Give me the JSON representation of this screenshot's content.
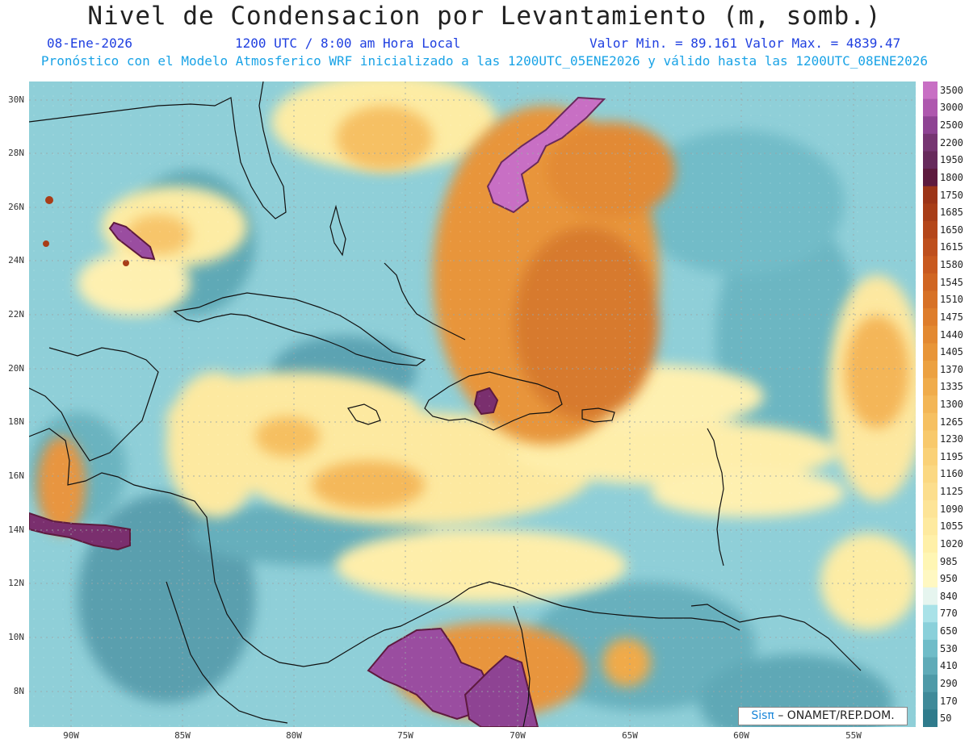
{
  "header": {
    "title": "Nivel de Condensacion por Levantamiento (m, somb.)",
    "date": "08-Ene-2026",
    "time": "1200 UTC / 8:00 am Hora Local",
    "minmax": "Valor Min. = 89.161  Valor Max. = 4839.47",
    "model_line": "Pronóstico con el Modelo Atmosferico WRF inicializado a las 1200UTC_05ENE2026 y válido hasta las  1200UTC_08ENE2026"
  },
  "axes": {
    "lat_labels": [
      "30N",
      "28N",
      "26N",
      "24N",
      "22N",
      "20N",
      "18N",
      "16N",
      "14N",
      "12N",
      "10N",
      "8N"
    ],
    "lon_labels": [
      "90W",
      "85W",
      "80W",
      "75W",
      "70W",
      "65W",
      "60W",
      "55W"
    ]
  },
  "colorbar": {
    "labels": [
      "3500",
      "3000",
      "2500",
      "2200",
      "1950",
      "1800",
      "1750",
      "1685",
      "1650",
      "1615",
      "1580",
      "1545",
      "1510",
      "1475",
      "1440",
      "1405",
      "1370",
      "1335",
      "1300",
      "1265",
      "1230",
      "1195",
      "1160",
      "1125",
      "1090",
      "1055",
      "1020",
      "985",
      "950",
      "840",
      "770",
      "650",
      "530",
      "410",
      "290",
      "170",
      "50"
    ],
    "colors": [
      "#c86fc4",
      "#ae58ae",
      "#8e4393",
      "#763572",
      "#672a5c",
      "#5e1a3e",
      "#9c3418",
      "#a83d18",
      "#b4461a",
      "#be4f1d",
      "#c8591f",
      "#d06522",
      "#d77126",
      "#de7d2b",
      "#e38931",
      "#e89538",
      "#eca141",
      "#f0ac4b",
      "#f3b656",
      "#f6c061",
      "#f8c96c",
      "#fad177",
      "#fbd882",
      "#fcde8d",
      "#fde497",
      "#feea9f",
      "#fff0a8",
      "#fff6b4",
      "#fff8c2",
      "#e6f5ef",
      "#a9e2e8",
      "#8ad0da",
      "#6fbcc8",
      "#5fabb8",
      "#4e9aa8",
      "#3f8a99",
      "#2f7b8c"
    ]
  },
  "credit": {
    "sis": "Sisπ",
    "text": "– ONAMET/REP.DOM."
  }
}
